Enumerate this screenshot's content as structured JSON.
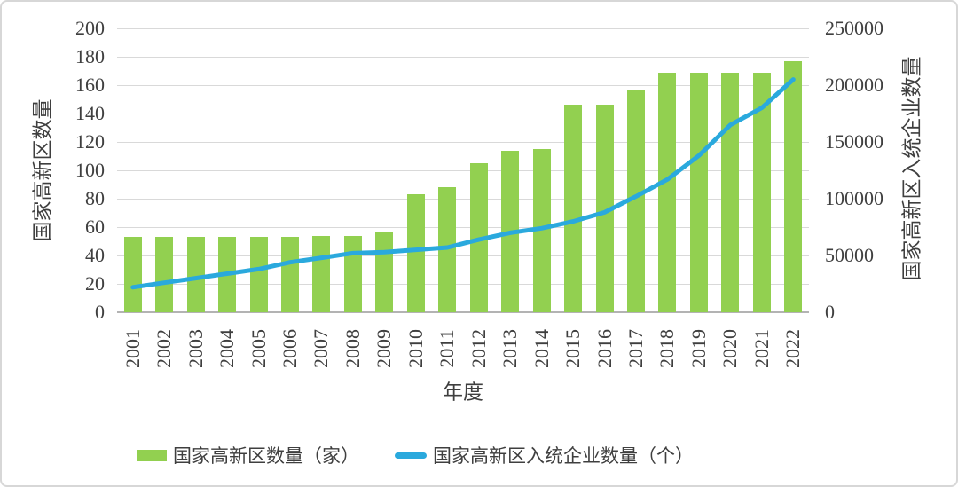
{
  "chart_data": {
    "type": "bar+line combo",
    "categories": [
      "2001",
      "2002",
      "2003",
      "2004",
      "2005",
      "2006",
      "2007",
      "2008",
      "2009",
      "2010",
      "2011",
      "2012",
      "2013",
      "2014",
      "2015",
      "2016",
      "2017",
      "2018",
      "2019",
      "2020",
      "2021",
      "2022"
    ],
    "series": [
      {
        "name": "国家高新区数量（家）",
        "type": "bar",
        "axis": "left",
        "color": "#92d050",
        "values": [
          53,
          53,
          53,
          53,
          53,
          53,
          54,
          54,
          56,
          83,
          88,
          105,
          114,
          115,
          146,
          146,
          156,
          169,
          169,
          169,
          169,
          177
        ]
      },
      {
        "name": "国家高新区入统企业数量（个）",
        "type": "line",
        "axis": "right",
        "color": "#2aa9dd",
        "values": [
          22000,
          26000,
          30000,
          34000,
          38000,
          44000,
          48000,
          52000,
          53000,
          55000,
          57000,
          64000,
          70000,
          74000,
          80000,
          88000,
          102000,
          117000,
          138000,
          165000,
          180000,
          205000
        ]
      }
    ],
    "left_axis": {
      "title": "国家高新区数量",
      "min": 0,
      "max": 200,
      "step": 20,
      "ticks": [
        "0",
        "20",
        "40",
        "60",
        "80",
        "100",
        "120",
        "140",
        "160",
        "180",
        "200"
      ]
    },
    "right_axis": {
      "title": "国家高新区入统企业数量",
      "min": 0,
      "max": 250000,
      "step": 50000,
      "ticks": [
        "0",
        "50000",
        "100000",
        "150000",
        "200000",
        "250000"
      ]
    },
    "x_axis": {
      "title": "年度"
    },
    "grid": true,
    "legend_position": "bottom",
    "gridline_color": "#d9d9d9",
    "axis_line_color": "#b3b3b3",
    "text_color": "#3f3f3f"
  }
}
